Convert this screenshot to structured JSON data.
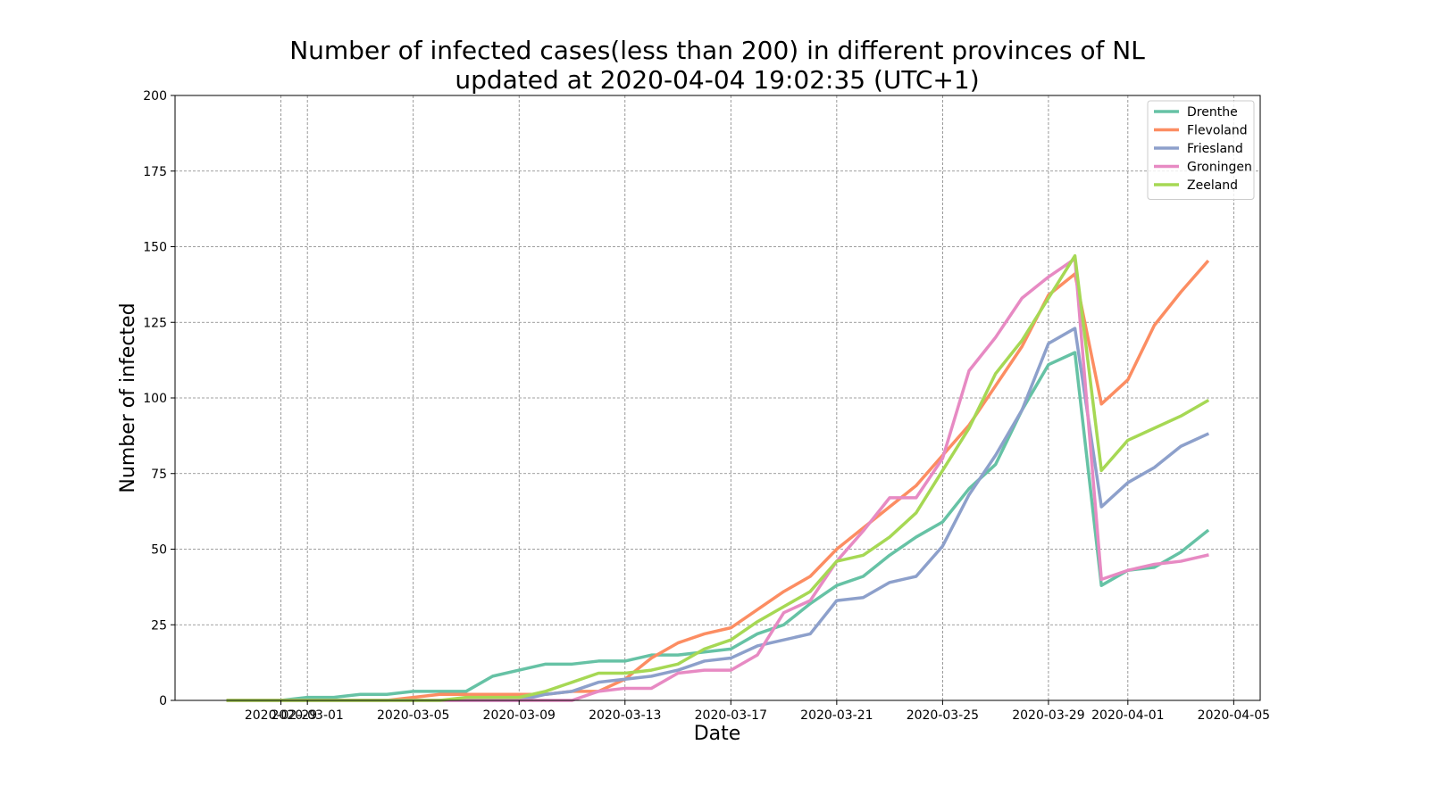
{
  "chart_data": {
    "type": "line",
    "title_line1": "Number of infected cases(less than 200) in different provinces of NL",
    "title_line2": "updated at 2020-04-04 19:02:35 (UTC+1)",
    "xlabel": "Date",
    "ylabel": "Number of infected",
    "xlim": [
      "2020-02-25",
      "2020-04-06"
    ],
    "ylim": [
      0,
      200
    ],
    "x_ticks": [
      "2020-02-29",
      "2020-03-01",
      "2020-03-05",
      "2020-03-09",
      "2020-03-13",
      "2020-03-17",
      "2020-03-21",
      "2020-03-25",
      "2020-03-29",
      "2020-04-01",
      "2020-04-05"
    ],
    "x_tick_labels": [
      "2020-02-29",
      "2020-03-01",
      "2020-03-05",
      "2020-03-09",
      "2020-03-13",
      "2020-03-17",
      "2020-03-21",
      "2020-03-25",
      "2020-03-29",
      "2020-04-01",
      "2020-04-05"
    ],
    "y_ticks": [
      0,
      25,
      50,
      75,
      100,
      125,
      150,
      175,
      200
    ],
    "y_tick_labels": [
      "0",
      "25",
      "50",
      "75",
      "100",
      "125",
      "150",
      "175",
      "200"
    ],
    "grid": true,
    "legend_position": "top-right",
    "dates": [
      "2020-02-27",
      "2020-02-28",
      "2020-02-29",
      "2020-03-01",
      "2020-03-02",
      "2020-03-03",
      "2020-03-04",
      "2020-03-05",
      "2020-03-06",
      "2020-03-07",
      "2020-03-08",
      "2020-03-09",
      "2020-03-10",
      "2020-03-11",
      "2020-03-12",
      "2020-03-13",
      "2020-03-14",
      "2020-03-15",
      "2020-03-16",
      "2020-03-17",
      "2020-03-18",
      "2020-03-19",
      "2020-03-20",
      "2020-03-21",
      "2020-03-22",
      "2020-03-23",
      "2020-03-24",
      "2020-03-25",
      "2020-03-26",
      "2020-03-27",
      "2020-03-28",
      "2020-03-29",
      "2020-03-30",
      "2020-03-31",
      "2020-04-01",
      "2020-04-02",
      "2020-04-03",
      "2020-04-04"
    ],
    "series": [
      {
        "name": "Drenthe",
        "color": "#66c2a5",
        "values": [
          0,
          0,
          0,
          1,
          1,
          2,
          2,
          3,
          3,
          3,
          8,
          10,
          12,
          12,
          13,
          13,
          15,
          15,
          16,
          17,
          22,
          25,
          32,
          38,
          41,
          48,
          54,
          59,
          70,
          78,
          96,
          111,
          115,
          38,
          43,
          44,
          49,
          56
        ]
      },
      {
        "name": "Flevoland",
        "color": "#fc8d62",
        "values": [
          0,
          0,
          0,
          0,
          0,
          0,
          0,
          1,
          2,
          2,
          2,
          2,
          2,
          3,
          3,
          7,
          14,
          19,
          22,
          24,
          30,
          36,
          41,
          50,
          57,
          64,
          71,
          81,
          91,
          104,
          117,
          134,
          141,
          98,
          106,
          124,
          135,
          145
        ]
      },
      {
        "name": "Friesland",
        "color": "#8da0cb",
        "values": [
          0,
          0,
          0,
          0,
          0,
          0,
          0,
          0,
          0,
          0,
          0,
          0,
          2,
          3,
          6,
          7,
          8,
          10,
          13,
          14,
          18,
          20,
          22,
          33,
          34,
          39,
          41,
          51,
          68,
          81,
          96,
          118,
          123,
          64,
          72,
          77,
          84,
          88
        ]
      },
      {
        "name": "Groningen",
        "color": "#e78ac3",
        "values": [
          0,
          0,
          0,
          0,
          0,
          0,
          0,
          0,
          0,
          0,
          0,
          0,
          0,
          0,
          3,
          4,
          4,
          9,
          10,
          10,
          15,
          29,
          33,
          46,
          56,
          67,
          67,
          80,
          109,
          120,
          133,
          140,
          146,
          40,
          43,
          45,
          46,
          48
        ]
      },
      {
        "name": "Zeeland",
        "color": "#a6d854",
        "values": [
          0,
          0,
          0,
          0,
          0,
          0,
          0,
          0,
          0,
          1,
          1,
          1,
          3,
          6,
          9,
          9,
          10,
          12,
          17,
          20,
          26,
          31,
          36,
          46,
          48,
          54,
          62,
          76,
          90,
          108,
          119,
          133,
          147,
          76,
          86,
          90,
          94,
          99
        ]
      }
    ]
  }
}
